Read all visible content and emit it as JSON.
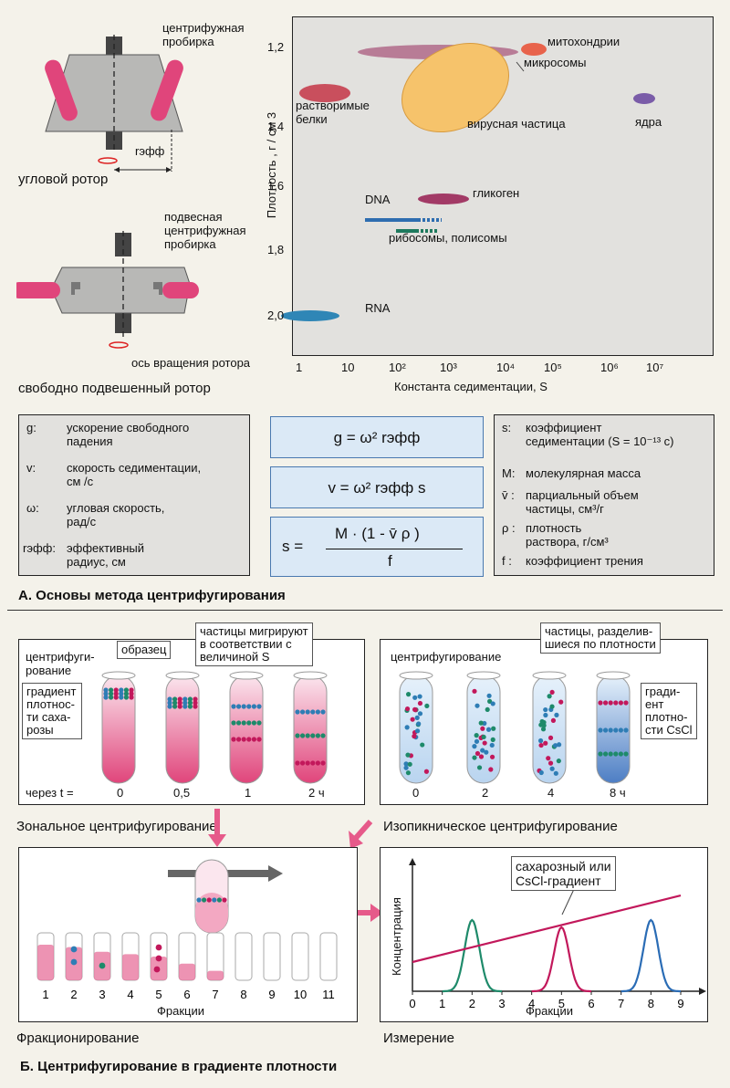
{
  "section_a": {
    "title": "А. Основы метода центрифугирования",
    "angle_rotor": {
      "tube_label": "центрифужная\nпробирка",
      "r_eff": "rэфф",
      "caption": "угловой ротор"
    },
    "swing_rotor": {
      "tube_label": "подвесная\nцентрифужная\nпробирка",
      "axis_label": "ось вращения ротора",
      "caption": "свободно подвешенный ротор"
    },
    "chart_data": {
      "type": "scatter",
      "ylabel": "Плотность , г / см 3",
      "xlabel": "Константа седиментации, S",
      "y_ticks": [
        "1,2",
        "1,4",
        "1,6",
        "1,8",
        "2,0"
      ],
      "x_ticks": [
        "1",
        "10",
        "10²",
        "10³",
        "10⁴",
        "10⁵",
        "10⁶",
        "10⁷"
      ],
      "x_scale": "log",
      "items": [
        {
          "label": "митохондрии",
          "color": "#e8634b"
        },
        {
          "label": "микросомы",
          "color": "#b87c96"
        },
        {
          "label": "растворимые\nбелки",
          "color": "#c94f5d"
        },
        {
          "label": "вирусная частица",
          "color": "#f6c36b"
        },
        {
          "label": "ядра",
          "color": "#7a5ca8"
        },
        {
          "label": "гликоген",
          "color": "#a23a66"
        },
        {
          "label": "DNA",
          "color": "#2e6db0"
        },
        {
          "label": "рибосомы, полисомы",
          "color": "#1e7a5e"
        },
        {
          "label": "RNA",
          "color": "#2f86b6"
        }
      ]
    },
    "legend_left": [
      {
        "sym": "g:",
        "text": "ускорение свободного\nпадения"
      },
      {
        "sym": "v:",
        "text": "скорость седиментации,\nсм /с"
      },
      {
        "sym": "ω:",
        "text": "угловая скорость,\nрад/с"
      },
      {
        "sym": "rэфф:",
        "text": "эффективный\nрадиус, см"
      }
    ],
    "formulas": [
      "g = ω² rэфф",
      "v = ω² rэфф s"
    ],
    "formula3": {
      "lhs": "s =",
      "num": "M · (1 - v̄ ρ )",
      "den": "f"
    },
    "legend_right": [
      {
        "sym": "s:",
        "text": "коэффициент\nседиментации (S = 10⁻¹³ c)"
      },
      {
        "sym": "M:",
        "text": "молекулярная масса"
      },
      {
        "sym": "v̄ :",
        "text": "парциальный объем\nчастицы, см³/г"
      },
      {
        "sym": "ρ :",
        "text": "плотность\nраствора, г/см³"
      },
      {
        "sym": "f :",
        "text": "коэффициент трения"
      }
    ]
  },
  "section_b": {
    "title": "Б. Центрифугирование в градиенте плотности",
    "zonal": {
      "label_centrif": "центрифуги-\nрование",
      "sample": "образец",
      "migrate": "частицы мигрируют\nв соответствии с\nвеличиной S",
      "gradient": "градиент\nплотнос-\nти саха-\nрозы",
      "time_prefix": "через t =",
      "times": [
        "0",
        "0,5",
        "1",
        "2 ч"
      ],
      "caption": "Зональное центрифугирование"
    },
    "isopycnic": {
      "label_centrif": "центрифугирование",
      "separated": "частицы, разделив-\nшиеся по плотности",
      "gradient": "гради-\nент\nплотно-\nсти CsCl",
      "times": [
        "0",
        "2",
        "4",
        "8 ч"
      ],
      "caption": "Изопикническое центрифугирование"
    },
    "fractionation": {
      "numbers": [
        "1",
        "2",
        "3",
        "4",
        "5",
        "6",
        "7",
        "8",
        "9",
        "10",
        "11"
      ],
      "xlabel": "Фракции",
      "caption": "Фракционирование"
    },
    "measurement": {
      "callout": "сахарозный или\nCsCl-градиент",
      "ylabel": "Концентрация",
      "xlabel": "Фракции",
      "x_ticks": [
        "0",
        "1",
        "2",
        "3",
        "4",
        "5",
        "6",
        "7",
        "8",
        "9"
      ],
      "caption": "Измерение",
      "chart_data": {
        "type": "line",
        "x": [
          0,
          1,
          2,
          3,
          4,
          5,
          6,
          7,
          8,
          9
        ],
        "series": [
          {
            "peak": 2,
            "color": "#1e8a6a"
          },
          {
            "peak": 5,
            "color": "#c2185b"
          },
          {
            "peak": 8,
            "color": "#2a6cb5"
          }
        ],
        "gradient_line": {
          "from": [
            0,
            0.25
          ],
          "to": [
            9,
            0.82
          ],
          "color": "#c2185b"
        }
      }
    }
  }
}
